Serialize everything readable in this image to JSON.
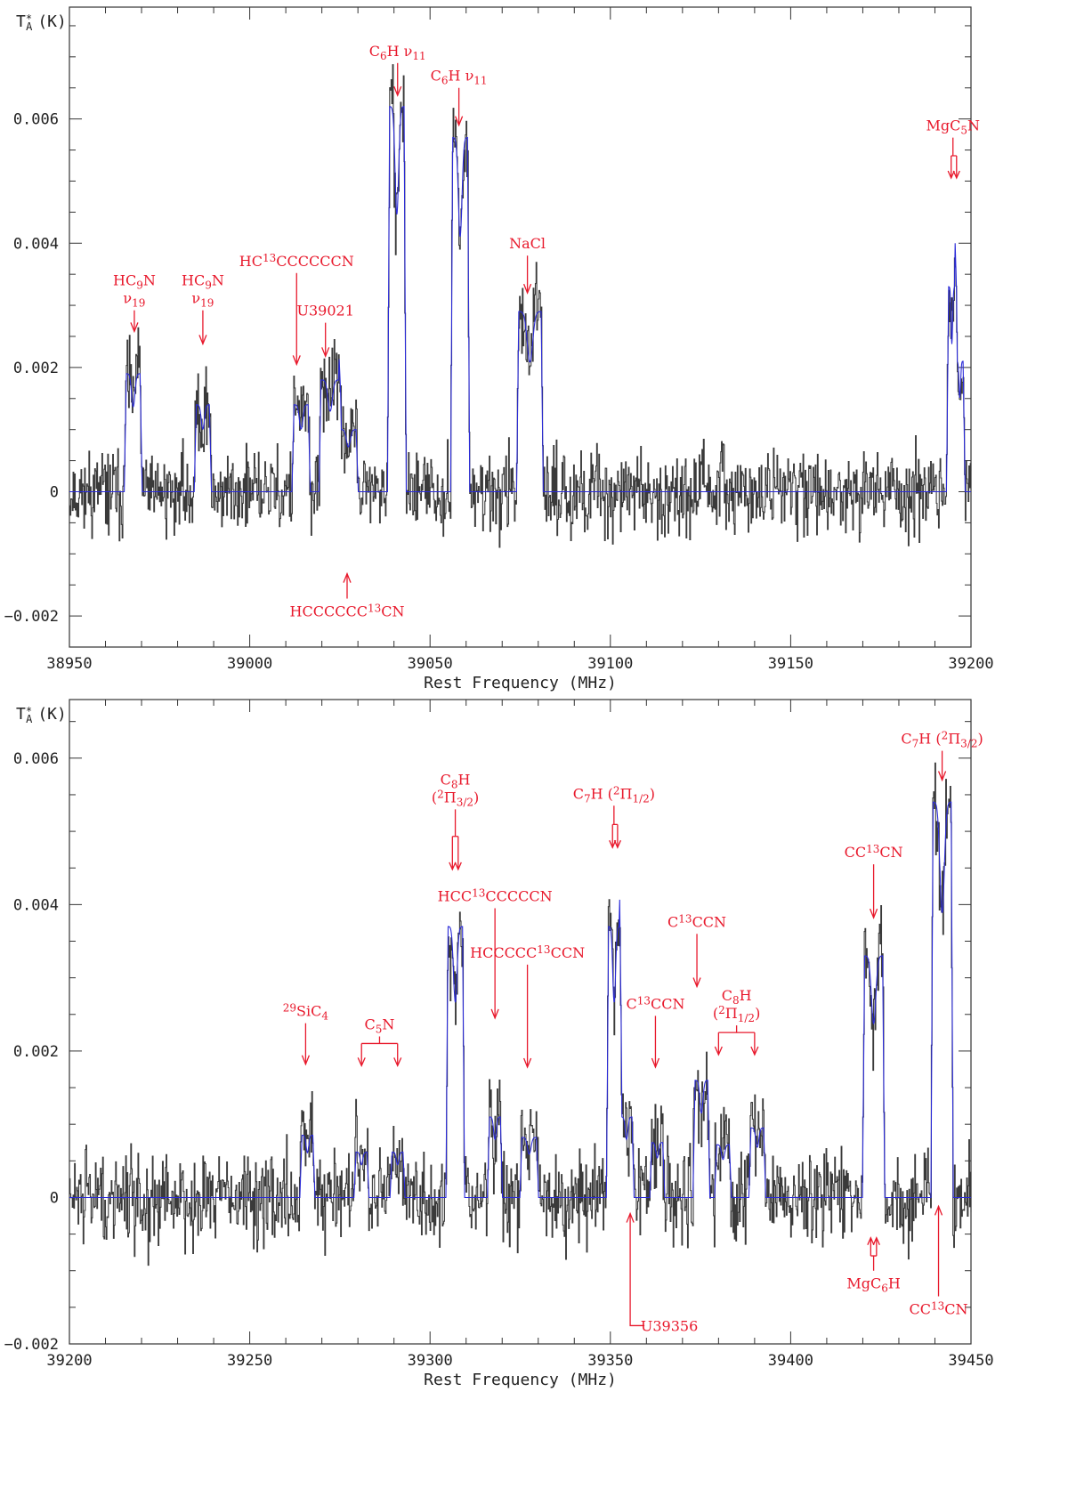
{
  "colors": {
    "spectrum": "#3a3a3a",
    "model": "#2a2ad8",
    "annotation": "#e8192c",
    "frame": "#333333"
  },
  "chart_data": [
    {
      "type": "line",
      "ylabel_main": "T",
      "ylabel_sup": "*",
      "ylabel_sub": "A",
      "ylabel_unit": "(K)",
      "xlabel": "Rest Frequency (MHz)",
      "xlim": [
        38950,
        39200
      ],
      "ylim": [
        -0.0025,
        0.0078
      ],
      "x_ticks": [
        38950,
        39000,
        39050,
        39100,
        39150,
        39200
      ],
      "x_tick_labels": [
        "38950",
        "39000",
        "39050",
        "39100",
        "39150",
        "39200"
      ],
      "y_ticks": [
        -0.002,
        0,
        0.002,
        0.004,
        0.006
      ],
      "y_tick_labels": [
        "−0.002",
        "0",
        "0.002",
        "0.004",
        "0.006"
      ],
      "noise_seed": 11,
      "noise_rms": 0.00055,
      "model_lines": [
        {
          "x1": 38965.8,
          "x2": 38969.6,
          "peak": 0.0019
        },
        {
          "x1": 38985.2,
          "x2": 38988.8,
          "peak": 0.0014
        },
        {
          "x1": 39012.3,
          "x2": 39016.2,
          "peak": 0.0014
        },
        {
          "x1": 39019.8,
          "x2": 39024.8,
          "peak": 0.0018
        },
        {
          "x1": 39025.2,
          "x2": 39029.5,
          "peak": 0.001
        },
        {
          "x1": 39038.8,
          "x2": 39042.8,
          "peak": 0.0062
        },
        {
          "x1": 39056.3,
          "x2": 39060.4,
          "peak": 0.0057
        },
        {
          "x1": 39074.6,
          "x2": 39080.8,
          "peak": 0.0029
        },
        {
          "x1": 39193.8,
          "x2": 39195.6,
          "peak": 0.0033
        },
        {
          "x1": 39196.0,
          "x2": 39197.8,
          "peak": 0.0021
        }
      ],
      "annotations": [
        {
          "lines": [
            "HC_9_N",
            "ν_19_"
          ],
          "x": 38968,
          "arrow_to_y": 0.00258,
          "arrow_from_y": 0.00292,
          "dir": "down"
        },
        {
          "lines": [
            "HC_9_N",
            "ν_19_"
          ],
          "x": 38987,
          "arrow_to_y": 0.00238,
          "arrow_from_y": 0.00292,
          "dir": "down"
        },
        {
          "lines": [
            "HC^13^CCCCCCN"
          ],
          "x": 39013,
          "arrow_to_y": 0.00205,
          "arrow_from_y": 0.00352,
          "dir": "down"
        },
        {
          "lines": [
            "U39021"
          ],
          "x": 39021,
          "arrow_to_y": 0.00218,
          "arrow_from_y": 0.00272,
          "dir": "down"
        },
        {
          "lines": [
            "HCCCCCC^13^CN"
          ],
          "x": 39027,
          "arrow_to_y": -0.00132,
          "arrow_from_y": -0.00172,
          "dir": "up"
        },
        {
          "lines": [
            "C_6_H  ν_11_"
          ],
          "x": 39041,
          "arrow_to_y": 0.00638,
          "arrow_from_y": 0.0069,
          "dir": "down"
        },
        {
          "lines": [
            "C_6_H  ν_11_"
          ],
          "x": 39058,
          "arrow_to_y": 0.0059,
          "arrow_from_y": 0.0065,
          "dir": "down"
        },
        {
          "lines": [
            "NaCl"
          ],
          "x": 39077,
          "arrow_to_y": 0.0032,
          "arrow_from_y": 0.0038,
          "dir": "down"
        },
        {
          "lines": [
            "MgC_5_N"
          ],
          "x": 39195,
          "arrow_to_y": 0.00505,
          "arrow_from_y": 0.0057,
          "dir": "down",
          "pair": [
            39194.5,
            39196.0
          ]
        }
      ]
    },
    {
      "type": "line",
      "ylabel_main": "T",
      "ylabel_sup": "*",
      "ylabel_sub": "A",
      "ylabel_unit": "(K)",
      "xlabel": "Rest Frequency (MHz)",
      "xlim": [
        39200,
        39450
      ],
      "ylim": [
        -0.002,
        0.0068
      ],
      "x_ticks": [
        39200,
        39250,
        39300,
        39350,
        39400,
        39450
      ],
      "x_tick_labels": [
        "39200",
        "39250",
        "39300",
        "39350",
        "39400",
        "39450"
      ],
      "y_ticks": [
        -0.002,
        0,
        0.002,
        0.004,
        0.006
      ],
      "y_tick_labels": [
        "−0.002",
        "0",
        "0.002",
        "0.004",
        "0.006"
      ],
      "noise_seed": 29,
      "noise_rms": 0.00052,
      "model_lines": [
        {
          "x1": 39264.5,
          "x2": 39267.5,
          "peak": 0.00085
        },
        {
          "x1": 39279.5,
          "x2": 39282.5,
          "peak": 0.00062
        },
        {
          "x1": 39289.5,
          "x2": 39292.5,
          "peak": 0.00062
        },
        {
          "x1": 39305.0,
          "x2": 39309.0,
          "peak": 0.0037
        },
        {
          "x1": 39316.5,
          "x2": 39319.5,
          "peak": 0.0011
        },
        {
          "x1": 39325.5,
          "x2": 39329.5,
          "peak": 0.00082
        },
        {
          "x1": 39349.5,
          "x2": 39352.6,
          "peak": 0.0037
        },
        {
          "x1": 39353.0,
          "x2": 39356.0,
          "peak": 0.0011
        },
        {
          "x1": 39361.5,
          "x2": 39364.5,
          "peak": 0.00075
        },
        {
          "x1": 39373.5,
          "x2": 39377.0,
          "peak": 0.0016
        },
        {
          "x1": 39379.5,
          "x2": 39383.0,
          "peak": 0.00072
        },
        {
          "x1": 39389.0,
          "x2": 39392.5,
          "peak": 0.00095
        },
        {
          "x1": 39420.5,
          "x2": 39425.5,
          "peak": 0.0033
        },
        {
          "x1": 39439.5,
          "x2": 39444.5,
          "peak": 0.0054
        }
      ],
      "annotations": [
        {
          "lines": [
            "^29^SiC_4_"
          ],
          "x": 39265.5,
          "arrow_to_y": 0.00182,
          "arrow_from_y": 0.00238,
          "dir": "down"
        },
        {
          "lines": [
            "C_5_N"
          ],
          "x": 39286,
          "arrow_to_y": 0.0018,
          "arrow_from_y": 0.0022,
          "dir": "down",
          "bracket": [
            39281,
            39291
          ]
        },
        {
          "lines": [
            "C_8_H",
            "(^2^Π_3/2_)"
          ],
          "x": 39307,
          "arrow_to_y": 0.00448,
          "arrow_from_y": 0.0053,
          "dir": "down",
          "pair": [
            39306.2,
            39307.8
          ]
        },
        {
          "lines": [
            "HCC^13^CCCCCN"
          ],
          "x": 39318,
          "arrow_to_y": 0.00245,
          "arrow_from_y": 0.00395,
          "dir": "down"
        },
        {
          "lines": [
            "HCCCCC^13^CCN"
          ],
          "x": 39327,
          "arrow_to_y": 0.00178,
          "arrow_from_y": 0.00318,
          "dir": "down"
        },
        {
          "lines": [
            "C_7_H (^2^Π_1/2_)"
          ],
          "x": 39351,
          "arrow_to_y": 0.00478,
          "arrow_from_y": 0.00535,
          "dir": "down",
          "pair": [
            39350.6,
            39352.0
          ]
        },
        {
          "lines": [
            "U39356"
          ],
          "x": 39355.5,
          "arrow_to_y": -0.00022,
          "arrow_from_y": -0.00158,
          "dir": "up"
        },
        {
          "lines": [
            "C^13^CCN"
          ],
          "x": 39362.5,
          "arrow_to_y": 0.00178,
          "arrow_from_y": 0.00248,
          "dir": "down"
        },
        {
          "lines": [
            "C^13^CCN"
          ],
          "x": 39374,
          "arrow_to_y": 0.00288,
          "arrow_from_y": 0.0036,
          "dir": "down"
        },
        {
          "lines": [
            "C_8_H",
            "(^2^Π_1/2_)"
          ],
          "x": 39385,
          "arrow_to_y": 0.00195,
          "arrow_from_y": 0.00235,
          "dir": "down",
          "bracket": [
            39380,
            39390
          ]
        },
        {
          "lines": [
            "CC^13^CN"
          ],
          "x": 39423,
          "arrow_to_y": 0.00382,
          "arrow_from_y": 0.00455,
          "dir": "down"
        },
        {
          "lines": [
            "MgC_6_H"
          ],
          "x": 39423,
          "arrow_to_y": -0.00055,
          "arrow_from_y": -0.001,
          "dir": "up",
          "pair": [
            39422.2,
            39423.8
          ]
        },
        {
          "lines": [
            "CC^13^CN"
          ],
          "x": 39441,
          "arrow_to_y": -0.00012,
          "arrow_from_y": -0.00135,
          "dir": "up"
        },
        {
          "lines": [
            "C_7_H (^2^Π_3/2_)"
          ],
          "x": 39442,
          "arrow_to_y": 0.0057,
          "arrow_from_y": 0.0061,
          "dir": "down"
        }
      ]
    }
  ]
}
